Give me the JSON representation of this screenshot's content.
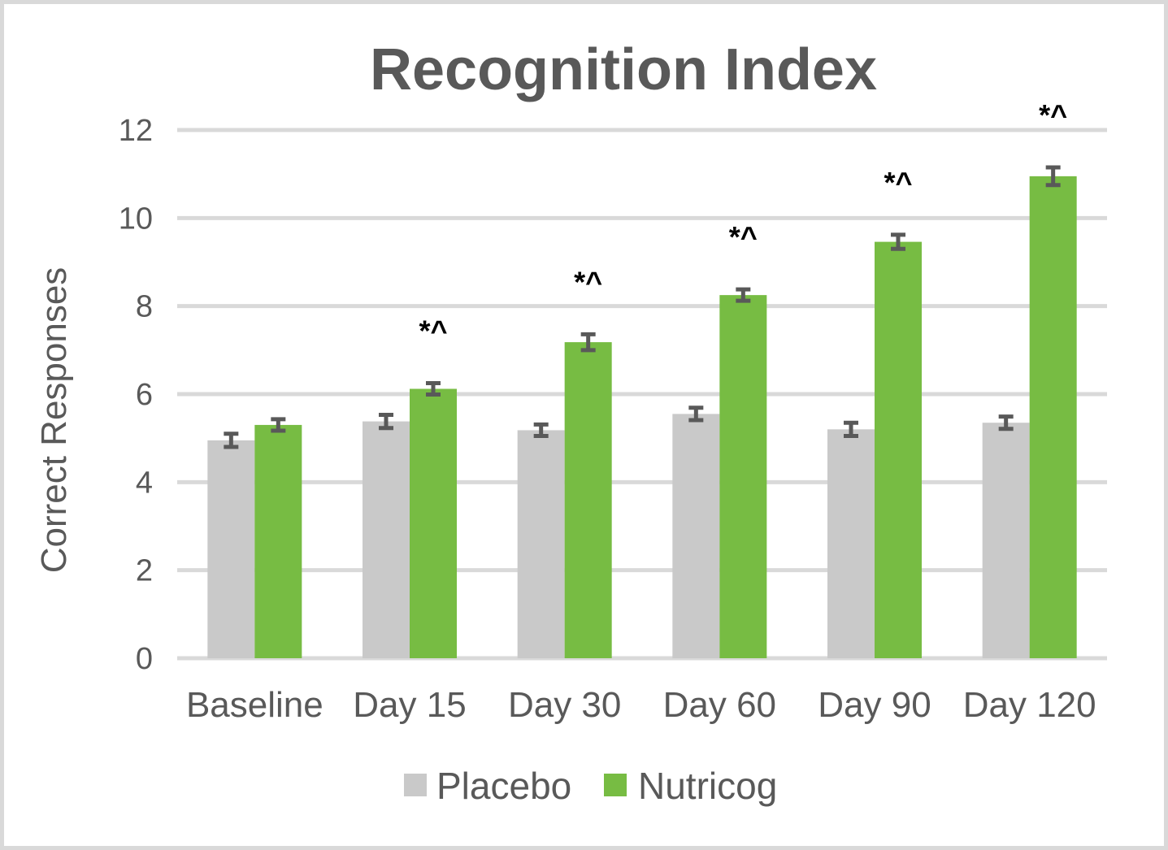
{
  "chart_data": {
    "type": "bar",
    "title": "Recognition Index",
    "xlabel": "",
    "ylabel": "Correct Responses",
    "ylim": [
      0,
      12
    ],
    "yticks": [
      0,
      2,
      4,
      6,
      8,
      10,
      12
    ],
    "grid": true,
    "legend_position": "bottom",
    "categories": [
      "Baseline",
      "Day 15",
      "Day 30",
      "Day 60",
      "Day 90",
      "Day 120"
    ],
    "series": [
      {
        "name": "Placebo",
        "color": "#c9c9c9",
        "values": [
          4.95,
          5.38,
          5.18,
          5.55,
          5.2,
          5.35
        ],
        "error": [
          0.15,
          0.15,
          0.13,
          0.14,
          0.15,
          0.14
        ]
      },
      {
        "name": "Nutricog",
        "color": "#77bc43",
        "values": [
          5.3,
          6.12,
          7.18,
          8.25,
          9.46,
          10.95
        ],
        "error": [
          0.13,
          0.13,
          0.18,
          0.13,
          0.16,
          0.2
        ]
      }
    ],
    "annotations": [
      "",
      "*^",
      "*^",
      "*^",
      "*^",
      "*^"
    ],
    "error_bar_color": "#595959",
    "gridline_color": "#d9d9d9"
  }
}
